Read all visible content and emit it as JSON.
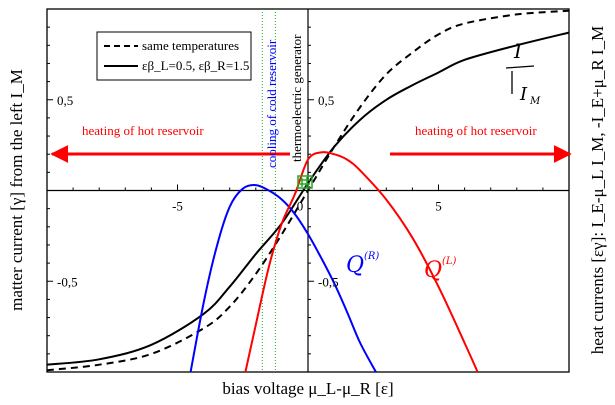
{
  "chart_data": {
    "type": "line",
    "xlim": [
      -10,
      10
    ],
    "ylim": [
      -1,
      1
    ],
    "xlabel": "bias voltage μ_L-μ_R [ε]",
    "ylabel_left": "matter current [γ] from the left I_M",
    "ylabel_right": "heat currents [εγ]: I_E-μ_L I_M, -I_E+μ_R I_M",
    "x_tick_labels": [
      {
        "x": -5,
        "label": "-5"
      },
      {
        "x": 0,
        "label": "0"
      },
      {
        "x": 5,
        "label": "5"
      }
    ],
    "y_tick_labels": [
      {
        "y": 0.5,
        "label": "0,5"
      },
      {
        "y": 0,
        "label": "0"
      },
      {
        "y": -0.5,
        "label": "-0,5"
      }
    ],
    "y_tick_labels_inner": [
      {
        "y": 0.5,
        "label": "0,5"
      },
      {
        "y": -0.5,
        "label": "-0,5"
      }
    ],
    "legend": [
      {
        "label": "same temperatures",
        "style": "dashed"
      },
      {
        "label": "εβ_L=0.5, εβ_R=1.5",
        "style": "solid"
      }
    ],
    "series": [
      {
        "name": "same temperatures",
        "color": "#000000",
        "dash": true,
        "x": [
          -10,
          -8,
          -6,
          -4,
          -3,
          -2,
          -1,
          0,
          1,
          2,
          3,
          4,
          5,
          6,
          8,
          10
        ],
        "y": [
          -0.99,
          -0.96,
          -0.9,
          -0.76,
          -0.64,
          -0.46,
          -0.24,
          0.0,
          0.24,
          0.46,
          0.64,
          0.76,
          0.86,
          0.92,
          0.97,
          0.99
        ]
      },
      {
        "name": "εβ_L=0.5, εβ_R=1.5",
        "color": "#000000",
        "dash": false,
        "x": [
          -10,
          -8,
          -6,
          -4,
          -3,
          -2,
          -1,
          0,
          1,
          2,
          3,
          4,
          5,
          6,
          8,
          10
        ],
        "y": [
          -0.96,
          -0.93,
          -0.85,
          -0.68,
          -0.53,
          -0.35,
          -0.18,
          0.04,
          0.24,
          0.39,
          0.5,
          0.58,
          0.65,
          0.72,
          0.8,
          0.87
        ]
      },
      {
        "name": "",
        "color": "#0000ff",
        "dash": false,
        "x": [
          -4.5,
          -4,
          -3.5,
          -3,
          -2.5,
          -2,
          -1.5,
          -1,
          -0.5,
          0,
          0.5,
          1,
          1.5,
          2,
          2.6
        ],
        "y": [
          -1.0,
          -0.62,
          -0.31,
          -0.09,
          0.01,
          0.03,
          0.0,
          -0.05,
          -0.13,
          -0.24,
          -0.37,
          -0.51,
          -0.67,
          -0.84,
          -1.0
        ]
      },
      {
        "name": "",
        "color": "#ff0000",
        "dash": false,
        "x": [
          -2.4,
          -2,
          -1.5,
          -1,
          -0.5,
          0,
          0.5,
          1,
          1.5,
          2,
          3,
          4,
          5,
          6,
          6.5
        ],
        "y": [
          -1.0,
          -0.74,
          -0.42,
          -0.18,
          -0.02,
          0.17,
          0.21,
          0.2,
          0.17,
          0.11,
          -0.05,
          -0.26,
          -0.53,
          -0.84,
          -1.0
        ]
      }
    ],
    "annotations": {
      "heating_left": "heating of hot reservoir",
      "heating_right": "heating of hot reservoir",
      "cooling": "cooling of cold reservoir",
      "generator": "thermoelectric generator"
    },
    "vertical_lines_x": [
      -1.75,
      -1.25
    ],
    "handwritten": {
      "right_top_upper": "I",
      "right_top_lower": "I",
      "right_top_lower_sub": "M",
      "blue_label": "Q",
      "blue_sup": "(R)",
      "red_label": "Q",
      "red_sup": "(L)"
    }
  }
}
